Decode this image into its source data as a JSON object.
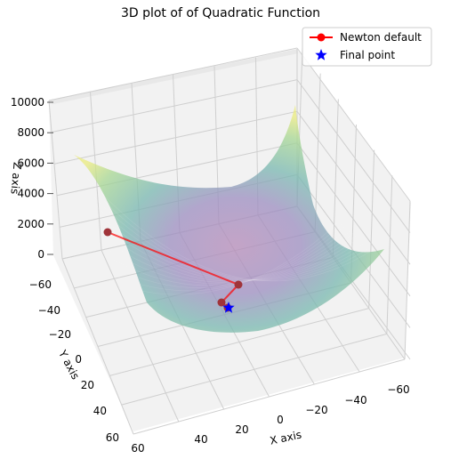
{
  "chart_data": {
    "type": "surface3d",
    "title": "3D plot of of Quadratic Function",
    "xlabel": "X axis",
    "ylabel": "Y axis",
    "zlabel": "Z axis",
    "x_ticks": [
      "60",
      "40",
      "20",
      "0",
      "−20",
      "−40",
      "−60"
    ],
    "y_ticks": [
      "−60",
      "−40",
      "−20",
      "0",
      "20",
      "40",
      "60"
    ],
    "z_ticks": [
      "10000",
      "8000",
      "6000",
      "4000",
      "2000",
      "0"
    ],
    "xlim": [
      -65,
      65
    ],
    "ylim": [
      -65,
      65
    ],
    "zlim": [
      0,
      10000
    ],
    "surface": {
      "function": "x^2 + y^2",
      "colormap": "viridis",
      "alpha": 0.55
    },
    "series": [
      {
        "name": "Newton default",
        "marker": "circle",
        "color": "#ff0000",
        "points": [
          {
            "x": 25,
            "y": -55,
            "z": 3600
          },
          {
            "x": -10,
            "y": -20,
            "z": 500
          },
          {
            "x": -4,
            "y": -10,
            "z": 116
          },
          {
            "x": -1,
            "y": -5,
            "z": 26
          }
        ]
      },
      {
        "name": "Final point",
        "marker": "star",
        "color": "#0000ff",
        "points": [
          {
            "x": 0,
            "y": 0,
            "z": 0
          }
        ]
      }
    ],
    "legend_position": "top-right",
    "grid": true
  }
}
